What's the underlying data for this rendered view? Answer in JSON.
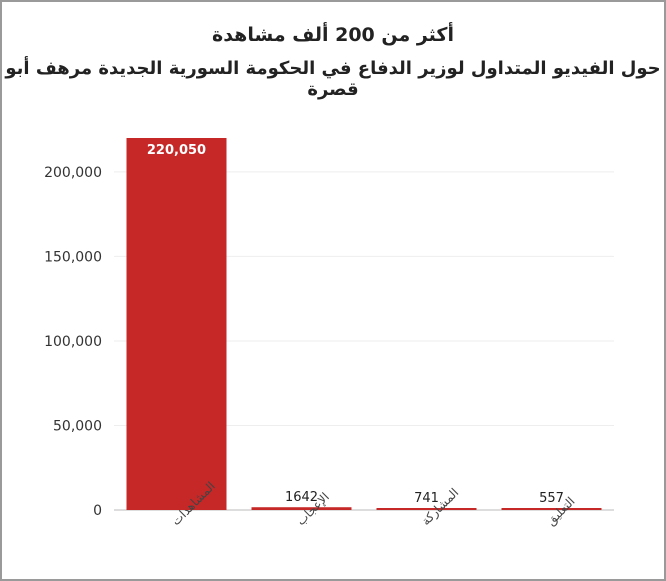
{
  "chart_data": {
    "type": "bar",
    "title": "أكثر من 200 ألف مشاهدة",
    "subtitle": "حول الفيديو المتداول لوزير الدفاع في الحكومة السورية الجديدة مرهف أبو قصرة",
    "categories": [
      "المشاهدات",
      "الإعجاب",
      "المشاركة",
      "التعليق"
    ],
    "values": [
      220050,
      1642,
      741,
      557
    ],
    "value_labels": [
      "220,050",
      "1642",
      "741",
      "557"
    ],
    "yticks": [
      0,
      50000,
      100000,
      150000,
      200000
    ],
    "ytick_labels": [
      "0",
      "50,000",
      "100,000",
      "150,000",
      "200,000"
    ],
    "ylim": [
      0,
      220050
    ],
    "xlabel": "",
    "ylabel": "",
    "bar_color": "#c62828",
    "grid": true,
    "legend": "none"
  }
}
